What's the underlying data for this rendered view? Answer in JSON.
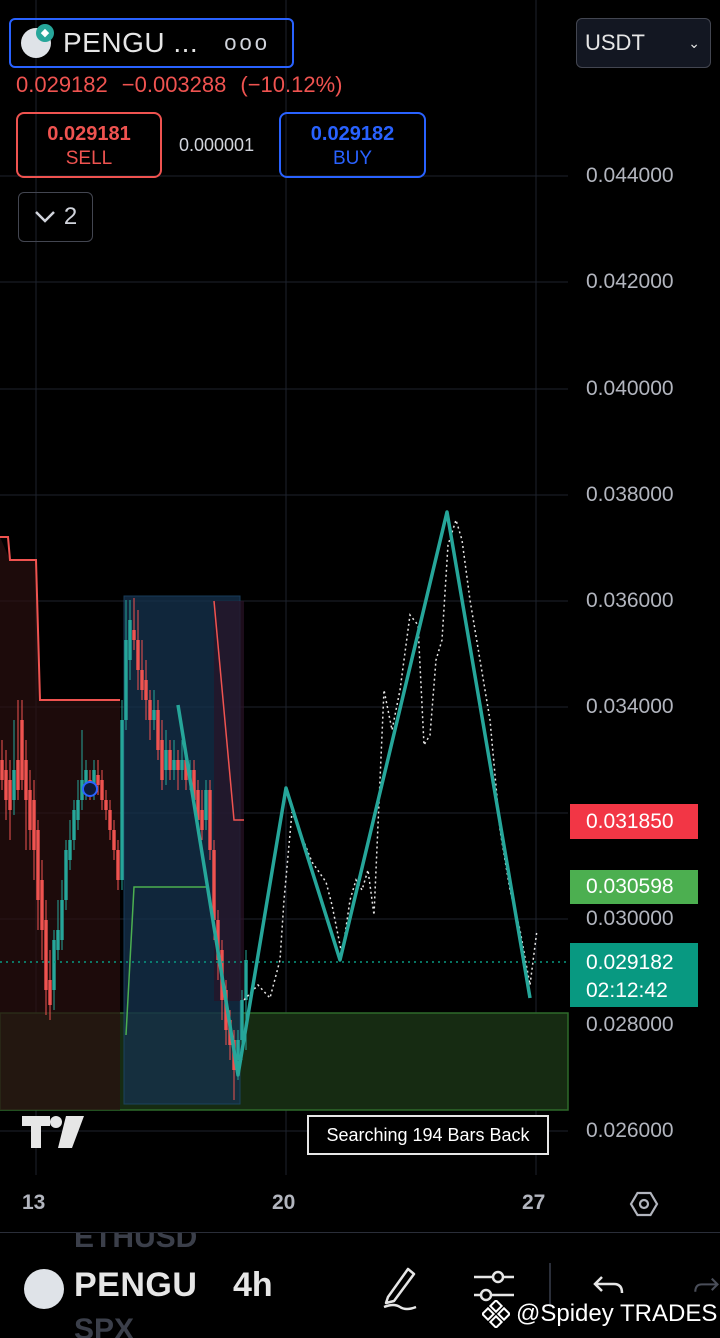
{
  "header": {
    "symbol": "PENGU ...",
    "more_icon": "ellipsis-icon",
    "last_price": "0.029182",
    "change": "−0.003288",
    "change_percent": "(−10.12%)",
    "sell_price": "0.029181",
    "sell_label": "SELL",
    "spread": "0.000001",
    "buy_price": "0.029182",
    "buy_label": "BUY",
    "indicators_count": "2",
    "currency": "USDT"
  },
  "price_axis": {
    "labels": [
      "0.044000",
      "0.042000",
      "0.040000",
      "0.038000",
      "0.036000",
      "0.034000",
      "0.030000",
      "0.028000",
      "0.026000"
    ],
    "tag_red": "0.031850",
    "tag_green": "0.030598",
    "current_price": "0.029182",
    "countdown": "02:12:42"
  },
  "time_axis": {
    "labels": [
      "13",
      "20",
      "27"
    ]
  },
  "overlay": {
    "search_text": "Searching 194 Bars Back"
  },
  "bottom_bar": {
    "ghost_top": "ETHUSD",
    "symbol": "PENGU",
    "interval": "4h",
    "ghost_bottom": "SPX",
    "watermark": "@Spidey TRADES"
  },
  "colors": {
    "up": "#26a69a",
    "down": "#ef5350",
    "accent": "#2962ff",
    "projection": "#26a69a"
  }
}
